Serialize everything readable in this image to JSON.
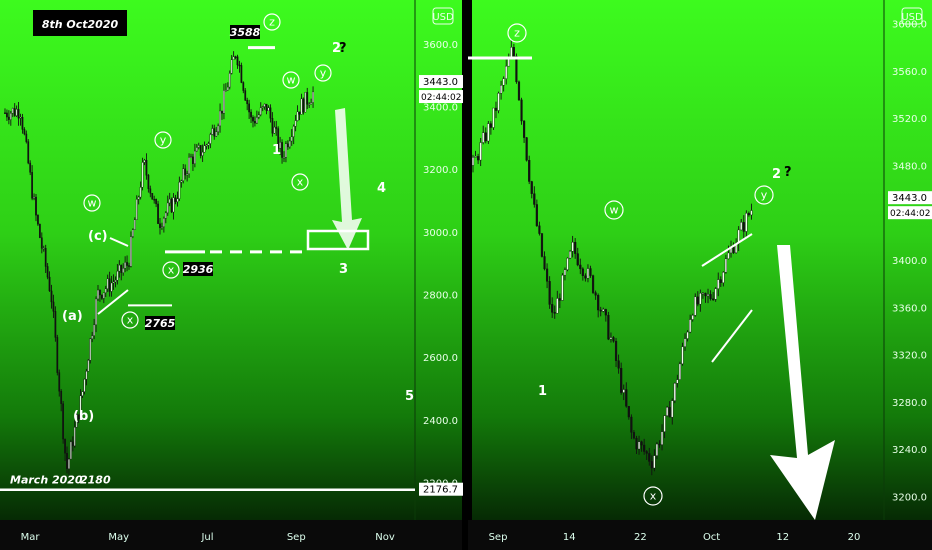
{
  "chart_data": [
    {
      "type": "candlestick",
      "title": "8th Oct2020",
      "currency": "USD",
      "xlabels": [
        "Mar",
        "May",
        "Jul",
        "Sep",
        "Nov"
      ],
      "y_ticks": [
        2200,
        2400,
        2600,
        2800,
        3000,
        3200,
        3400,
        3600
      ],
      "y_tick_labels": [
        "2200.0",
        "2400.0",
        "2600.0",
        "2800.0",
        "3000.0",
        "3200.0",
        "3400.0",
        "3600.0"
      ],
      "ylim": [
        2080,
        3740
      ],
      "price_tags": {
        "current": "3443.0",
        "timer": "02:44:02",
        "level": "2176.7"
      },
      "annotations": {
        "high": "3588",
        "low_x1": "2765",
        "low_x2": "2936",
        "march_low": "2180",
        "march_label": "March 2020",
        "wave_labels": [
          "z",
          "w",
          "y",
          "w",
          "x",
          "y",
          "x",
          "(c)",
          "(a)",
          "(b)",
          "1",
          "2",
          "?",
          "3",
          "4",
          "5"
        ]
      },
      "series": [
        {
          "name": "",
          "x": [
            "Feb 10",
            "Feb 20",
            "Mar 1",
            "Mar 10",
            "Mar 23",
            "Apr 1",
            "Apr 15",
            "May 1",
            "May 15",
            "Jun 8",
            "Jun 15",
            "Jul 1",
            "Jul 15",
            "Aug 1",
            "Aug 15",
            "Sep 2",
            "Sep 8",
            "Sep 15",
            "Sep 23",
            "Oct 1",
            "Oct 8"
          ],
          "values": [
            3380,
            3390,
            3050,
            2800,
            2240,
            2480,
            2800,
            2840,
            2900,
            3220,
            3030,
            3100,
            3230,
            3270,
            3380,
            3580,
            3350,
            3400,
            3240,
            3390,
            3443
          ]
        }
      ]
    },
    {
      "type": "candlestick",
      "currency": "USD",
      "xlabels": [
        "Sep",
        "14",
        "22",
        "Oct",
        "12",
        "20"
      ],
      "y_ticks": [
        3200,
        3240,
        3280,
        3320,
        3360,
        3400,
        3440,
        3480,
        3520,
        3560,
        3600
      ],
      "y_tick_labels": [
        "3200.0",
        "3240.0",
        "3280.0",
        "3320.0",
        "3360.0",
        "3400.0",
        "3440.0",
        "3480.0",
        "3520.0",
        "3560.0",
        "3600.0"
      ],
      "ylim": [
        3180,
        3620
      ],
      "price_tags": {
        "current": "3443.0",
        "timer": "02:44:02"
      },
      "annotations": {
        "wave_labels": [
          "z",
          "w",
          "x",
          "y",
          "1",
          "2",
          "?"
        ]
      },
      "series": [
        {
          "name": "",
          "x": [
            "Aug 27",
            "Sep 1",
            "Sep 2",
            "Sep 3",
            "Sep 8",
            "Sep 10",
            "Sep 14",
            "Sep 18",
            "Sep 21",
            "Sep 23",
            "Sep 24",
            "Sep 28",
            "Oct 1",
            "Oct 5",
            "Oct 8"
          ],
          "values": [
            3480,
            3520,
            3580,
            3450,
            3350,
            3410,
            3380,
            3330,
            3250,
            3230,
            3280,
            3360,
            3370,
            3410,
            3443
          ]
        }
      ]
    }
  ]
}
